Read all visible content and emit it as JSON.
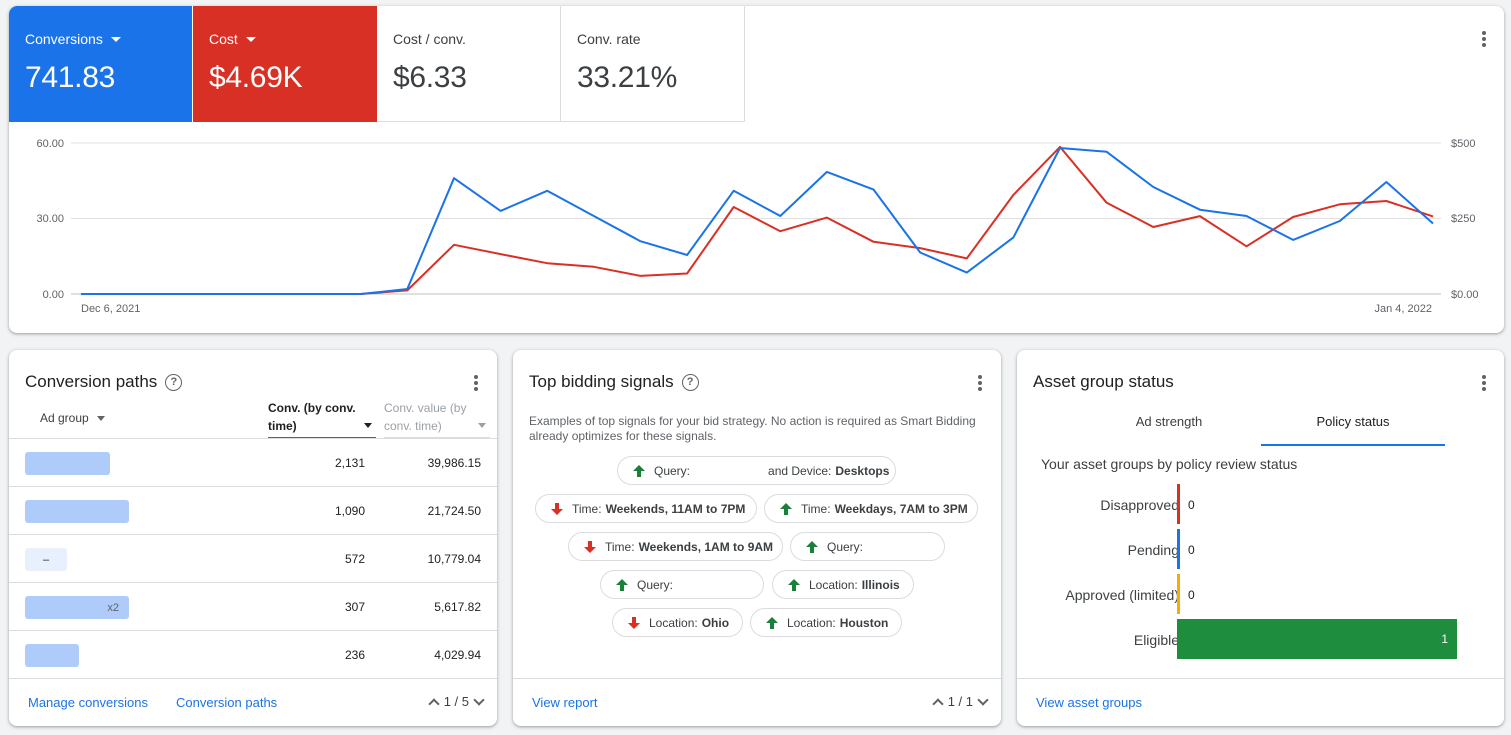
{
  "colors": {
    "conversions": "#1a73e8",
    "cost": "#d93025",
    "up": "#188038",
    "down": "#d93025",
    "pending": "#1a73e8",
    "approved_limited": "#f9ab00",
    "eligible": "#1e8e3e"
  },
  "metrics": [
    {
      "label": "Conversions",
      "value": "741.83",
      "dropdown": true
    },
    {
      "label": "Cost",
      "value": "$4.69K",
      "dropdown": true
    },
    {
      "label": "Cost / conv.",
      "value": "$6.33"
    },
    {
      "label": "Conv. rate",
      "value": "33.21%"
    }
  ],
  "chart_data": {
    "type": "line",
    "x_start_label": "Dec 6, 2021",
    "x_end_label": "Jan 4, 2022",
    "y_left_ticks": [
      "60.00",
      "30.00",
      "0.00"
    ],
    "y_right_ticks": [
      "$500",
      "$250",
      "$0.00"
    ],
    "ylim_left": [
      0,
      60
    ],
    "ylim_right": [
      0,
      500
    ],
    "series": [
      {
        "name": "Conversions",
        "axis": "left",
        "values": [
          0,
          0,
          0,
          0,
          0,
          0,
          0,
          2,
          46,
          33,
          41,
          31,
          21,
          15.5,
          41,
          31,
          48.5,
          41.5,
          16.5,
          8.5,
          22.5,
          58,
          56.5,
          42.5,
          33.5,
          31,
          21.5,
          29,
          44.5,
          28
        ]
      },
      {
        "name": "Cost",
        "axis": "right",
        "values": [
          0,
          0,
          0,
          0,
          0,
          0,
          0,
          12,
          163,
          132,
          102,
          90,
          60,
          68,
          288,
          208,
          253,
          173,
          152,
          118,
          328,
          487,
          302,
          222,
          258,
          158,
          255,
          297,
          308,
          257
        ]
      }
    ]
  },
  "conversion_paths": {
    "title": "Conversion paths",
    "headers": {
      "ad_group": "Ad group",
      "conv": "Conv. (by conv. time)",
      "value": "Conv. value (by conv. time)"
    },
    "rows": [
      {
        "chip_text": "",
        "conv": "2,131",
        "value": "39,986.15"
      },
      {
        "chip_text": "",
        "conv": "1,090",
        "value": "21,724.50"
      },
      {
        "chip_text": "–",
        "conv": "572",
        "value": "10,779.04"
      },
      {
        "chip_text": "x2",
        "conv": "307",
        "value": "5,617.82"
      },
      {
        "chip_text": "",
        "conv": "236",
        "value": "4,029.94"
      }
    ],
    "footer": {
      "manage": "Manage conversions",
      "paths": "Conversion paths",
      "pager": "1 / 5"
    }
  },
  "bidding_signals": {
    "title": "Top bidding signals",
    "description": "Examples of top signals for your bid strategy. No action is required as Smart Bidding already optimizes for these signals.",
    "signals": [
      {
        "prefix": "Query:",
        "mid": "and Device:",
        "bold": "Desktops",
        "direction": "up"
      },
      {
        "prefix": "Time:",
        "bold": "Weekends, 11AM to 7PM",
        "direction": "down"
      },
      {
        "prefix": "Time:",
        "bold": "Weekdays, 7AM to 3PM",
        "direction": "up"
      },
      {
        "prefix": "Time:",
        "bold": "Weekends, 1AM to 9AM",
        "direction": "down"
      },
      {
        "prefix": "Query:",
        "bold": "",
        "direction": "up"
      },
      {
        "prefix": "Query:",
        "bold": "",
        "direction": "up"
      },
      {
        "prefix": "Location:",
        "bold": "Illinois",
        "direction": "up"
      },
      {
        "prefix": "Location:",
        "bold": "Ohio",
        "direction": "down"
      },
      {
        "prefix": "Location:",
        "bold": "Houston",
        "direction": "up"
      }
    ],
    "footer": {
      "link": "View report",
      "pager": "1 / 1"
    }
  },
  "asset_status": {
    "title": "Asset group status",
    "tabs": [
      "Ad strength",
      "Policy status"
    ],
    "subtitle": "Your asset groups by policy review status",
    "bars": [
      {
        "label": "Disapproved",
        "value": 0
      },
      {
        "label": "Pending",
        "value": 0
      },
      {
        "label": "Approved (limited)",
        "value": 0
      },
      {
        "label": "Eligible",
        "value": 1
      }
    ],
    "footer": {
      "link": "View asset groups"
    }
  }
}
